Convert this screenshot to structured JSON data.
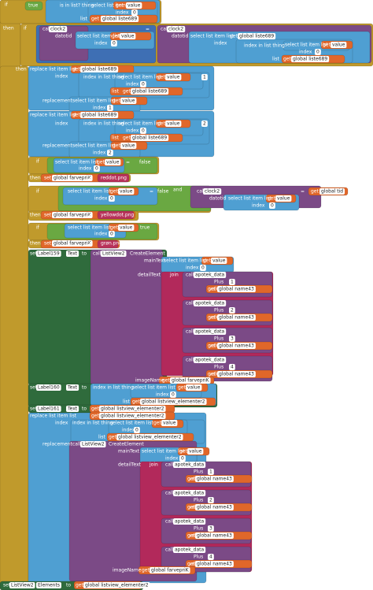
{
  "labels": [
    "if",
    "true",
    "is in list? thing",
    "select list item list",
    "get",
    "value",
    "index",
    "0",
    "list",
    "get",
    "global liste689",
    "then",
    "if",
    "call",
    "clock2",
    "datotid",
    "select list item list",
    "get",
    "value",
    "index",
    "0",
    "=",
    "call",
    "clock2",
    "datotid",
    "select list item list",
    "get",
    "global liste689",
    "index",
    "index in list thing",
    "select list item list",
    "get",
    "value",
    "index",
    "0",
    "list",
    "get",
    "global liste689",
    "then",
    "replace list item list",
    "get",
    "global liste689",
    "index",
    "index in list thing",
    "select list item list",
    "get",
    "value",
    "1",
    "index",
    "0",
    "list",
    "get",
    "global liste689",
    "replacement",
    "select list item list",
    "get",
    "value",
    "index",
    "1",
    "replace list item list",
    "get",
    "global liste689",
    "index",
    "index in list thing",
    "select list item list",
    "get",
    "value",
    "2",
    "index",
    "0",
    "list",
    "get",
    "global liste689",
    "replacement",
    "select list item list",
    "get",
    "value",
    "index",
    "2",
    "if",
    "select list item list",
    "get",
    "value",
    "=",
    "false",
    "index",
    "0",
    "then",
    "set",
    "global farvepriK",
    "to",
    "reddot.png",
    "if",
    "select list item list",
    "get",
    "value",
    "=",
    "false",
    "and",
    "call",
    "clock2",
    "datotid",
    "select list item list",
    "get",
    "value",
    "=",
    "get",
    "global tid",
    "index",
    "0",
    "index",
    "0",
    "then",
    "set",
    "global farvepriK",
    "to",
    "yellowdot.png",
    "if",
    "select list item list",
    "get",
    "value",
    "=",
    "true",
    "index",
    "0",
    "then",
    "set",
    "global farvepriK",
    "to",
    "grøn.png",
    "set",
    "Label159",
    "Text",
    "to",
    "call",
    "ListView2",
    "CreateElement",
    "mainText",
    "select list item list",
    "get",
    "value",
    "index",
    "0",
    "detailText",
    "join",
    "call",
    "apotek_data",
    "Plus",
    "1",
    "value",
    "get",
    "global name43",
    "call",
    "apotek_data",
    "Plus",
    "2",
    "value",
    "get",
    "global name43",
    "call",
    "apotek_data",
    "Plus",
    "3",
    "value",
    "get",
    "global name43",
    "call",
    "apotek_data",
    "Plus",
    "4",
    "value",
    "get",
    "global name43",
    "imageName",
    "get",
    "global farvepriK",
    "set",
    "Label160",
    "Text",
    "to",
    "index in list thing",
    "select list item list",
    "get",
    "value",
    "index",
    "0",
    "list",
    "get",
    "global listview_elementer2",
    "set",
    "Label161",
    "Text",
    "to",
    "get",
    "global listview_elementer2",
    "replace list item list",
    "get",
    "global listview_elementer2",
    "index",
    "index in list thing",
    "select list item list",
    "get",
    "value",
    "index",
    "0",
    "list",
    "get",
    "global listview_elementer2",
    "replacement",
    "call",
    "ListView2",
    "CreateElement",
    "mainText",
    "select list item list",
    "get",
    "value",
    "index",
    "0",
    "detailText",
    "join",
    "call",
    "apotek_data",
    "Plus",
    "1",
    "value",
    "get",
    "global name43",
    "call",
    "apotek_data",
    "Plus",
    "2",
    "value",
    "get",
    "global name43",
    "call",
    "apotek_data",
    "Plus",
    "3",
    "value",
    "get",
    "global name43",
    "call",
    "apotek_data",
    "Plus",
    "4",
    "value",
    "get",
    "global name43",
    "imageName",
    "get",
    "global farvepriK",
    "set",
    "ListView2",
    "Elements",
    "to",
    "get",
    "global listview_elementer2"
  ]
}
